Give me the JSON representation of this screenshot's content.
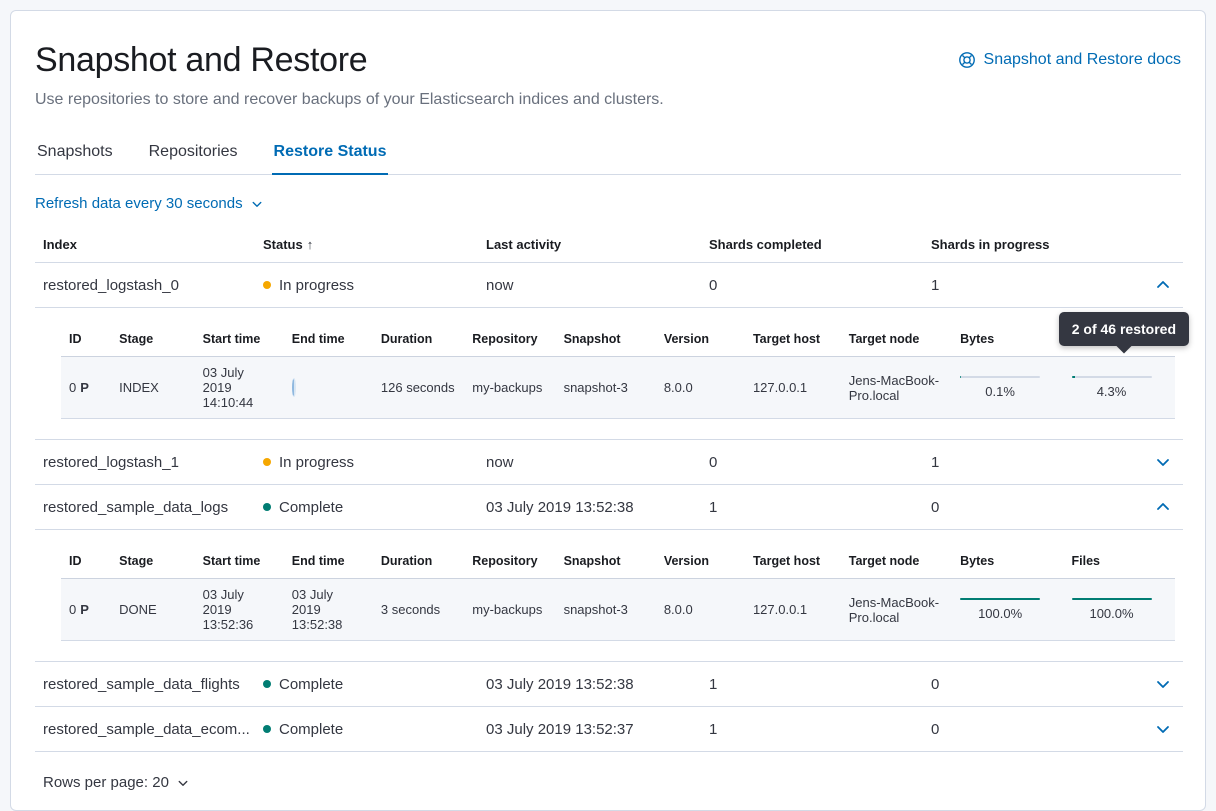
{
  "colors": {
    "accent_blue": "#006BB4",
    "warning_dot": "#F5A700",
    "success_dot": "#017D73",
    "progress_fill": "#017D73",
    "tooltip_bg": "#343741"
  },
  "page": {
    "title": "Snapshot and Restore",
    "subtitle": "Use repositories to store and recover backups of your Elasticsearch indices and clusters.",
    "docs_link_label": "Snapshot and Restore docs"
  },
  "tabs": [
    {
      "label": "Snapshots",
      "active": false
    },
    {
      "label": "Repositories",
      "active": false
    },
    {
      "label": "Restore Status",
      "active": true
    }
  ],
  "refresh_control": {
    "label": "Refresh data every 30 seconds"
  },
  "table": {
    "headers": {
      "index": "Index",
      "status": "Status",
      "last_activity": "Last activity",
      "shards_completed": "Shards completed",
      "shards_in_progress": "Shards in progress"
    },
    "sort": {
      "column": "Status",
      "direction": "ascending",
      "arrow": "↑"
    },
    "rows": [
      {
        "index": "restored_logstash_0",
        "status": "In progress",
        "status_kind": "in_progress",
        "last_activity": "now",
        "shards_completed": "0",
        "shards_in_progress": "1",
        "expanded": true
      },
      {
        "index": "restored_logstash_1",
        "status": "In progress",
        "status_kind": "in_progress",
        "last_activity": "now",
        "shards_completed": "0",
        "shards_in_progress": "1",
        "expanded": false
      },
      {
        "index": "restored_sample_data_logs",
        "status": "Complete",
        "status_kind": "complete",
        "last_activity": "03 July 2019 13:52:38",
        "shards_completed": "1",
        "shards_in_progress": "0",
        "expanded": true
      },
      {
        "index": "restored_sample_data_flights",
        "status": "Complete",
        "status_kind": "complete",
        "last_activity": "03 July 2019 13:52:38",
        "shards_completed": "1",
        "shards_in_progress": "0",
        "expanded": false
      },
      {
        "index": "restored_sample_data_ecom...",
        "status": "Complete",
        "status_kind": "complete",
        "last_activity": "03 July 2019 13:52:37",
        "shards_completed": "1",
        "shards_in_progress": "0",
        "expanded": false
      }
    ]
  },
  "detail_headers": {
    "id": "ID",
    "stage": "Stage",
    "start_time": "Start time",
    "end_time": "End time",
    "duration": "Duration",
    "repository": "Repository",
    "snapshot": "Snapshot",
    "version": "Version",
    "target_host": "Target host",
    "target_node": "Target node",
    "bytes": "Bytes",
    "files": "Files"
  },
  "details": {
    "restored_logstash_0": {
      "id": "0",
      "shard_type": "P",
      "stage": "INDEX",
      "start_time": "03 July 2019 14:10:44",
      "end_time": "",
      "end_time_loading": true,
      "duration": "126 seconds",
      "repository": "my-backups",
      "snapshot": "snapshot-3",
      "version": "8.0.0",
      "target_host": "127.0.0.1",
      "target_node": "Jens-MacBook-Pro.local",
      "bytes_label": "0.1%",
      "bytes_value": 0.1,
      "files_label": "4.3%",
      "files_value": 4.3
    },
    "restored_sample_data_logs": {
      "id": "0",
      "shard_type": "P",
      "stage": "DONE",
      "start_time": "03 July 2019 13:52:36",
      "end_time": "03 July 2019 13:52:38",
      "end_time_loading": false,
      "duration": "3 seconds",
      "repository": "my-backups",
      "snapshot": "snapshot-3",
      "version": "8.0.0",
      "target_host": "127.0.0.1",
      "target_node": "Jens-MacBook-Pro.local",
      "bytes_label": "100.0%",
      "bytes_value": 100,
      "files_label": "100.0%",
      "files_value": 100
    }
  },
  "tooltip": {
    "text": "2 of 46 restored"
  },
  "pagination": {
    "label": "Rows per page: 20"
  }
}
